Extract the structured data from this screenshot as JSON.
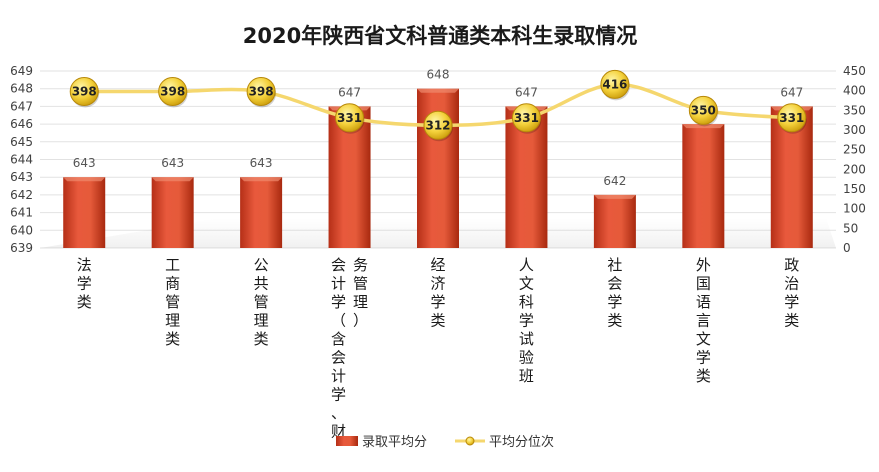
{
  "chart_data": {
    "type": "bar",
    "title": "2020年陕西省文科普通类本科生录取情况",
    "categories": [
      "法学类",
      "工商管理类",
      "公共管理类",
      "会计学（含会计学、财务管理）",
      "经济学类",
      "人文科学试验班",
      "社会学类",
      "外国语言文学类",
      "政治学类"
    ],
    "category_lines": [
      [
        "法学类"
      ],
      [
        "工商管理类"
      ],
      [
        "公共管理类"
      ],
      [
        "会计学（含会计学、财",
        "务管理）"
      ],
      [
        "经济学类"
      ],
      [
        "人文科学试验班"
      ],
      [
        "社会学类"
      ],
      [
        "外国语言文学类"
      ],
      [
        "政治学类"
      ]
    ],
    "series": [
      {
        "name": "录取平均分",
        "type": "bar",
        "axis": "left",
        "values": [
          643,
          643,
          643,
          647,
          648,
          647,
          642,
          646,
          647
        ],
        "color": "#d94a2e"
      },
      {
        "name": "平均分位次",
        "type": "line",
        "axis": "right",
        "values": [
          398,
          398,
          398,
          331,
          312,
          331,
          416,
          350,
          331
        ],
        "color": "#f5d76e"
      }
    ],
    "y_left": {
      "min": 639,
      "max": 649,
      "ticks": [
        639,
        640,
        641,
        642,
        643,
        644,
        645,
        646,
        647,
        648,
        649
      ]
    },
    "y_right": {
      "min": 0,
      "max": 450,
      "ticks": [
        0,
        50,
        100,
        150,
        200,
        250,
        300,
        350,
        400,
        450
      ]
    },
    "grid": true,
    "legend_position": "bottom"
  }
}
